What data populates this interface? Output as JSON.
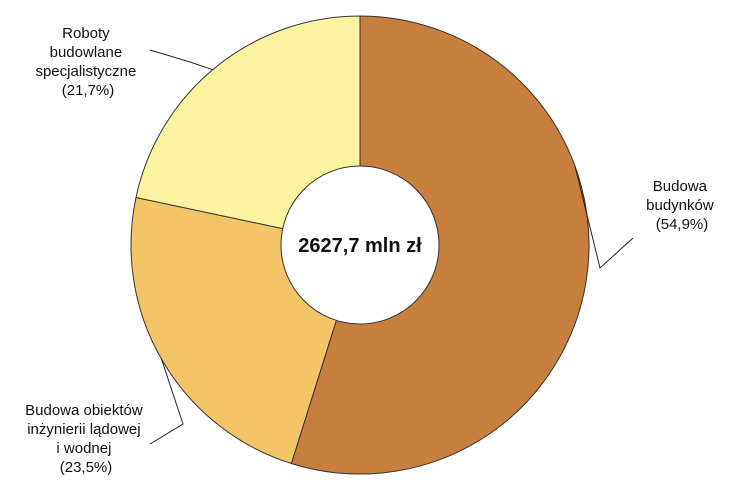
{
  "chart_data": {
    "type": "pie",
    "donut": true,
    "total_label": "2627,7 mln zł",
    "slices": [
      {
        "name": "Budowa budynków",
        "value": 54.9,
        "label_lines": [
          "Budowa",
          "budynków",
          "(54,9%)"
        ],
        "color": "#C87F3E"
      },
      {
        "name": "Budowa obiektów inżynierii lądowej i wodnej",
        "value": 23.5,
        "label_lines": [
          "Budowa obiektów",
          "inżynierii lądowej",
          "i wodnej",
          "(23,5%)"
        ],
        "color": "#F3C567"
      },
      {
        "name": "Roboty budowlane specjalistyczne",
        "value": 21.7,
        "label_lines": [
          "Roboty",
          "budowlane",
          "specjalistyczne",
          "(21,7%)"
        ],
        "color": "#FCF3A0"
      }
    ],
    "stroke_color": "#333333"
  }
}
